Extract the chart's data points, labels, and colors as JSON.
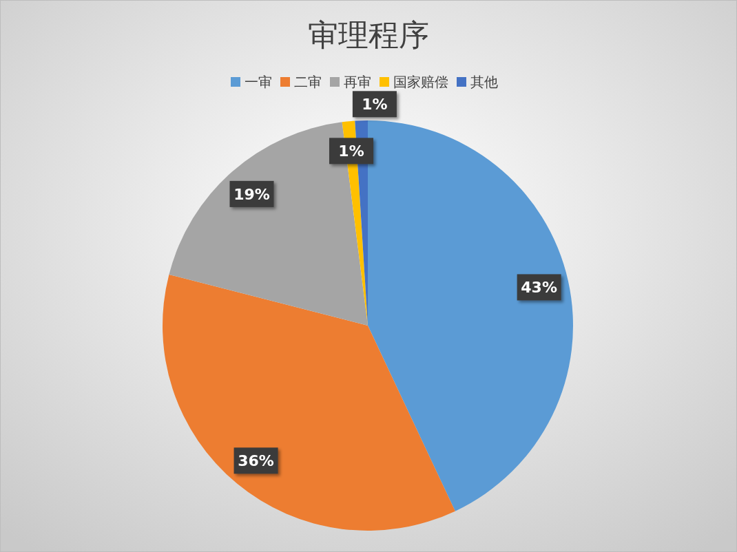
{
  "chart_data": {
    "type": "pie",
    "title": "审理程序",
    "categories": [
      "一审",
      "二审",
      "再审",
      "国家赔偿",
      "其他"
    ],
    "values": [
      43,
      36,
      19,
      1,
      1
    ],
    "colors": [
      "#5b9bd5",
      "#ed7d31",
      "#a5a5a5",
      "#ffc000",
      "#4472c4"
    ],
    "value_labels": [
      "43%",
      "36%",
      "19%",
      "1%",
      "1%"
    ],
    "legend": "top"
  }
}
